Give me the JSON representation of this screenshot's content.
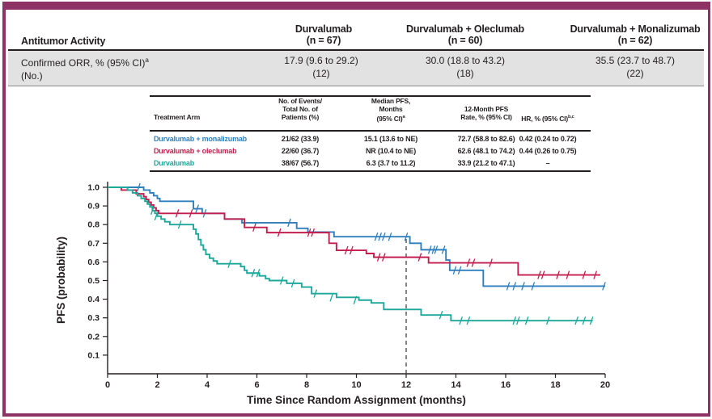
{
  "accent_color": "#8e3266",
  "orr_table": {
    "title": "Antitumor Activity",
    "columns": [
      {
        "name": "Durvalumab",
        "n": "(n = 67)"
      },
      {
        "name": "Durvalumab + Oleclumab",
        "n": "(n = 60)"
      },
      {
        "name": "Durvalumab + Monalizumab",
        "n": "(n = 62)"
      }
    ],
    "row": {
      "label": "Confirmed ORR, % (95% CI)",
      "label_sup": "a",
      "label2": "(No.)",
      "values": [
        "17.9 (9.6 to 29.2)",
        "30.0 (18.8 to 43.2)",
        "35.5 (23.7 to 48.7)"
      ],
      "counts": [
        "(12)",
        "(18)",
        "(22)"
      ]
    }
  },
  "pfs_table": {
    "headers": {
      "arm": "Treatment Arm",
      "events": [
        "No. of Events/",
        "Total No. of",
        "Patients (%)"
      ],
      "median": [
        "Median PFS,",
        "Months",
        "(95% CI)"
      ],
      "median_sup": "a",
      "rate12": [
        "12-Month PFS",
        "Rate, % (95% CI)"
      ],
      "hr": "HR, % (95% CI)",
      "hr_sup": "b,c"
    },
    "rows": [
      {
        "arm": "Durvalumab + monalizumab",
        "color": "#2e7fbe",
        "events": "21/62 (33.9)",
        "median": "15.1 (13.6 to NE)",
        "rate12": "72.7 (58.8 to 82.6)",
        "hr": "0.42 (0.24 to 0.72)"
      },
      {
        "arm": "Durvalumab + oleclumab",
        "color": "#c41e4f",
        "events": "22/60 (36.7)",
        "median": "NR (10.4 to NE)",
        "rate12": "62.6 (48.1 to 74.2)",
        "hr": "0.44 (0.26 to 0.75)"
      },
      {
        "arm": "Durvalumab",
        "color": "#1ba89b",
        "events": "38/67 (56.7)",
        "median": "6.3 (3.7 to 11.2)",
        "rate12": "33.9 (21.2 to 47.1)",
        "hr": "–"
      }
    ]
  },
  "chart_data": {
    "type": "line",
    "subtype": "kaplan-meier",
    "title": "",
    "xlabel": "Time Since Random Assignment (months)",
    "ylabel": "PFS (probability)",
    "xlim": [
      0,
      20
    ],
    "ylim": [
      0,
      1.0
    ],
    "xticks": [
      0,
      2,
      4,
      6,
      8,
      10,
      12,
      14,
      16,
      18,
      20
    ],
    "yticks": [
      0.1,
      0.2,
      0.3,
      0.4,
      0.5,
      0.6,
      0.7,
      0.8,
      0.9,
      1.0
    ],
    "grid": false,
    "reference_line": {
      "x": 12,
      "style": "dashed",
      "y_top": 0.735
    },
    "series": [
      {
        "name": "Durvalumab + monalizumab",
        "color": "#2e7fbe",
        "steps": [
          [
            0,
            1.0
          ],
          [
            1.45,
            0.985
          ],
          [
            1.7,
            0.97
          ],
          [
            1.85,
            0.955
          ],
          [
            2.0,
            0.94
          ],
          [
            2.1,
            0.925
          ],
          [
            3.45,
            0.885
          ],
          [
            3.8,
            0.86
          ],
          [
            4.7,
            0.83
          ],
          [
            5.4,
            0.81
          ],
          [
            7.6,
            0.78
          ],
          [
            8.05,
            0.76
          ],
          [
            9.1,
            0.735
          ],
          [
            12.15,
            0.7
          ],
          [
            12.6,
            0.665
          ],
          [
            13.6,
            0.61
          ],
          [
            13.75,
            0.555
          ],
          [
            15.1,
            0.47
          ],
          [
            20.0,
            0.47
          ]
        ],
        "censors": [
          [
            1.25,
            1.0
          ],
          [
            3.6,
            0.885
          ],
          [
            3.9,
            0.86
          ],
          [
            7.3,
            0.81
          ],
          [
            10.8,
            0.735
          ],
          [
            10.95,
            0.735
          ],
          [
            11.1,
            0.735
          ],
          [
            11.35,
            0.735
          ],
          [
            12.0,
            0.735
          ],
          [
            12.95,
            0.665
          ],
          [
            13.1,
            0.665
          ],
          [
            13.2,
            0.665
          ],
          [
            13.5,
            0.665
          ],
          [
            13.95,
            0.555
          ],
          [
            14.15,
            0.555
          ],
          [
            16.1,
            0.47
          ],
          [
            16.35,
            0.47
          ],
          [
            16.7,
            0.47
          ],
          [
            17.1,
            0.47
          ],
          [
            19.95,
            0.47
          ]
        ]
      },
      {
        "name": "Durvalumab + oleclumab",
        "color": "#c41e4f",
        "steps": [
          [
            0,
            1.0
          ],
          [
            0.55,
            0.985
          ],
          [
            1.15,
            0.965
          ],
          [
            1.45,
            0.95
          ],
          [
            1.55,
            0.935
          ],
          [
            1.65,
            0.92
          ],
          [
            1.75,
            0.905
          ],
          [
            1.85,
            0.89
          ],
          [
            1.95,
            0.875
          ],
          [
            2.05,
            0.86
          ],
          [
            4.7,
            0.83
          ],
          [
            5.5,
            0.785
          ],
          [
            6.4,
            0.757
          ],
          [
            8.9,
            0.7
          ],
          [
            9.2,
            0.662
          ],
          [
            10.4,
            0.645
          ],
          [
            10.7,
            0.625
          ],
          [
            12.9,
            0.595
          ],
          [
            16.5,
            0.53
          ],
          [
            19.8,
            0.53
          ]
        ],
        "censors": [
          [
            2.8,
            0.86
          ],
          [
            3.35,
            0.86
          ],
          [
            5.9,
            0.785
          ],
          [
            6.9,
            0.757
          ],
          [
            8.1,
            0.757
          ],
          [
            8.25,
            0.757
          ],
          [
            9.6,
            0.662
          ],
          [
            9.8,
            0.662
          ],
          [
            10.9,
            0.625
          ],
          [
            11.1,
            0.625
          ],
          [
            12.55,
            0.625
          ],
          [
            14.5,
            0.595
          ],
          [
            14.7,
            0.595
          ],
          [
            15.4,
            0.595
          ],
          [
            17.35,
            0.53
          ],
          [
            17.5,
            0.53
          ],
          [
            18.1,
            0.53
          ],
          [
            18.5,
            0.53
          ],
          [
            19.15,
            0.53
          ],
          [
            19.6,
            0.53
          ]
        ]
      },
      {
        "name": "Durvalumab",
        "color": "#1ba89b",
        "steps": [
          [
            0,
            1.0
          ],
          [
            0.8,
            0.985
          ],
          [
            1.0,
            0.97
          ],
          [
            1.2,
            0.955
          ],
          [
            1.35,
            0.94
          ],
          [
            1.5,
            0.925
          ],
          [
            1.6,
            0.91
          ],
          [
            1.7,
            0.895
          ],
          [
            1.8,
            0.875
          ],
          [
            1.9,
            0.86
          ],
          [
            2.0,
            0.845
          ],
          [
            2.15,
            0.83
          ],
          [
            2.3,
            0.815
          ],
          [
            2.5,
            0.8
          ],
          [
            3.45,
            0.775
          ],
          [
            3.55,
            0.75
          ],
          [
            3.65,
            0.72
          ],
          [
            3.75,
            0.69
          ],
          [
            3.85,
            0.665
          ],
          [
            3.95,
            0.64
          ],
          [
            4.1,
            0.62
          ],
          [
            4.25,
            0.605
          ],
          [
            4.4,
            0.59
          ],
          [
            5.35,
            0.575
          ],
          [
            5.5,
            0.555
          ],
          [
            5.6,
            0.54
          ],
          [
            6.1,
            0.525
          ],
          [
            6.35,
            0.51
          ],
          [
            6.5,
            0.5
          ],
          [
            7.2,
            0.485
          ],
          [
            7.8,
            0.465
          ],
          [
            8.2,
            0.43
          ],
          [
            9.2,
            0.41
          ],
          [
            10.1,
            0.395
          ],
          [
            10.6,
            0.38
          ],
          [
            11.1,
            0.345
          ],
          [
            12.6,
            0.315
          ],
          [
            13.8,
            0.285
          ],
          [
            19.5,
            0.285
          ]
        ],
        "censors": [
          [
            1.8,
            0.875
          ],
          [
            1.95,
            0.845
          ],
          [
            2.9,
            0.8
          ],
          [
            4.9,
            0.59
          ],
          [
            5.85,
            0.54
          ],
          [
            6.05,
            0.54
          ],
          [
            7.0,
            0.5
          ],
          [
            7.45,
            0.485
          ],
          [
            8.35,
            0.43
          ],
          [
            9.0,
            0.41
          ],
          [
            9.95,
            0.395
          ],
          [
            13.4,
            0.315
          ],
          [
            14.2,
            0.285
          ],
          [
            14.5,
            0.285
          ],
          [
            16.35,
            0.285
          ],
          [
            16.5,
            0.285
          ],
          [
            16.85,
            0.285
          ],
          [
            17.7,
            0.285
          ],
          [
            18.85,
            0.285
          ],
          [
            19.15,
            0.285
          ],
          [
            19.45,
            0.285
          ]
        ]
      }
    ]
  }
}
